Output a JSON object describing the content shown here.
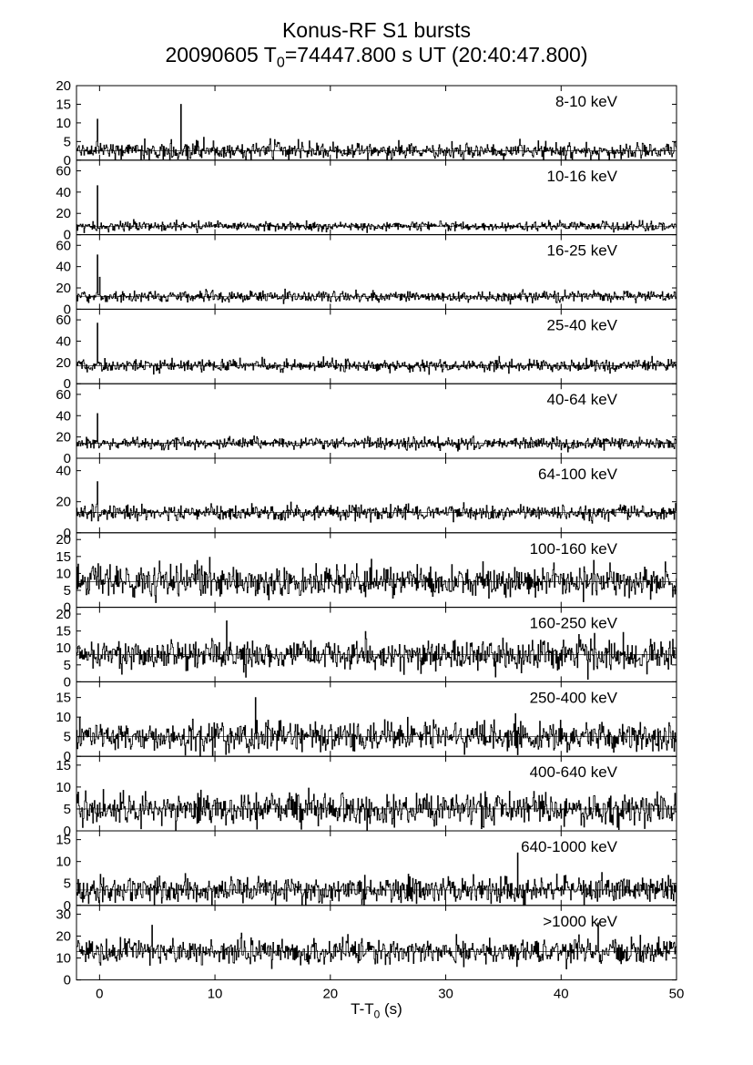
{
  "title": {
    "line1": "Konus-RF S1 bursts",
    "line2_prefix": "20090605 T",
    "line2_sub": "0",
    "line2_suffix": "=74447.800 s UT (20:40:47.800)"
  },
  "xaxis": {
    "label_prefix": "T-T",
    "label_sub": "0",
    "label_suffix": " (s)",
    "range": [
      -2,
      50
    ],
    "ticks": [
      0,
      10,
      20,
      30,
      40,
      50
    ]
  },
  "chart_data": {
    "type": "line",
    "style": "histogram",
    "x_range": [
      -2,
      50
    ],
    "panels": [
      {
        "label": "8-10 keV",
        "ylim": [
          0,
          20
        ],
        "yticks": [
          0,
          5,
          10,
          15,
          20
        ],
        "background": 2.5,
        "noise": 1.6,
        "spikes": [
          [
            -0.2,
            11
          ],
          [
            7.0,
            15
          ]
        ]
      },
      {
        "label": "10-16 keV",
        "ylim": [
          0,
          70
        ],
        "yticks": [
          0,
          20,
          40,
          60
        ],
        "background": 8,
        "noise": 3.0,
        "spikes": [
          [
            -0.2,
            46
          ]
        ]
      },
      {
        "label": "16-25 keV",
        "ylim": [
          0,
          70
        ],
        "yticks": [
          0,
          20,
          40,
          60
        ],
        "background": 12,
        "noise": 3.5,
        "spikes": [
          [
            -0.2,
            51
          ],
          [
            0.0,
            30
          ]
        ]
      },
      {
        "label": "25-40 keV",
        "ylim": [
          0,
          70
        ],
        "yticks": [
          0,
          20,
          40,
          60
        ],
        "background": 17,
        "noise": 4.0,
        "spikes": [
          [
            -0.2,
            57
          ]
        ]
      },
      {
        "label": "40-64 keV",
        "ylim": [
          0,
          70
        ],
        "yticks": [
          0,
          20,
          40,
          60
        ],
        "background": 14,
        "noise": 4.0,
        "spikes": [
          [
            -0.2,
            42
          ]
        ]
      },
      {
        "label": "64-100 keV",
        "ylim": [
          0,
          48
        ],
        "yticks": [
          0,
          20,
          40
        ],
        "background": 13,
        "noise": 3.5,
        "spikes": [
          [
            -0.2,
            33
          ]
        ]
      },
      {
        "label": "100-160 keV",
        "ylim": [
          0,
          22
        ],
        "yticks": [
          0,
          5,
          10,
          15,
          20
        ],
        "background": 7.5,
        "noise": 3.2,
        "spikes": []
      },
      {
        "label": "160-250 keV",
        "ylim": [
          0,
          22
        ],
        "yticks": [
          0,
          5,
          10,
          15,
          20
        ],
        "background": 8,
        "noise": 3.2,
        "spikes": [
          [
            11.0,
            18
          ]
        ]
      },
      {
        "label": "250-400 keV",
        "ylim": [
          0,
          19
        ],
        "yticks": [
          0,
          5,
          10,
          15
        ],
        "background": 5,
        "noise": 2.6,
        "spikes": [
          [
            13.5,
            15
          ]
        ]
      },
      {
        "label": "400-640 keV",
        "ylim": [
          0,
          17
        ],
        "yticks": [
          0,
          5,
          10,
          15
        ],
        "background": 5,
        "noise": 2.6,
        "spikes": []
      },
      {
        "label": "640-1000 keV",
        "ylim": [
          0,
          17
        ],
        "yticks": [
          0,
          5,
          10,
          15
        ],
        "background": 3.5,
        "noise": 2.0,
        "spikes": [
          [
            36.2,
            12
          ]
        ]
      },
      {
        "label": ">1000 keV",
        "ylim": [
          0,
          34
        ],
        "yticks": [
          0,
          10,
          20,
          30
        ],
        "background": 13,
        "noise": 4.0,
        "spikes": [
          [
            4.5,
            25
          ],
          [
            43.2,
            26
          ]
        ]
      }
    ]
  }
}
